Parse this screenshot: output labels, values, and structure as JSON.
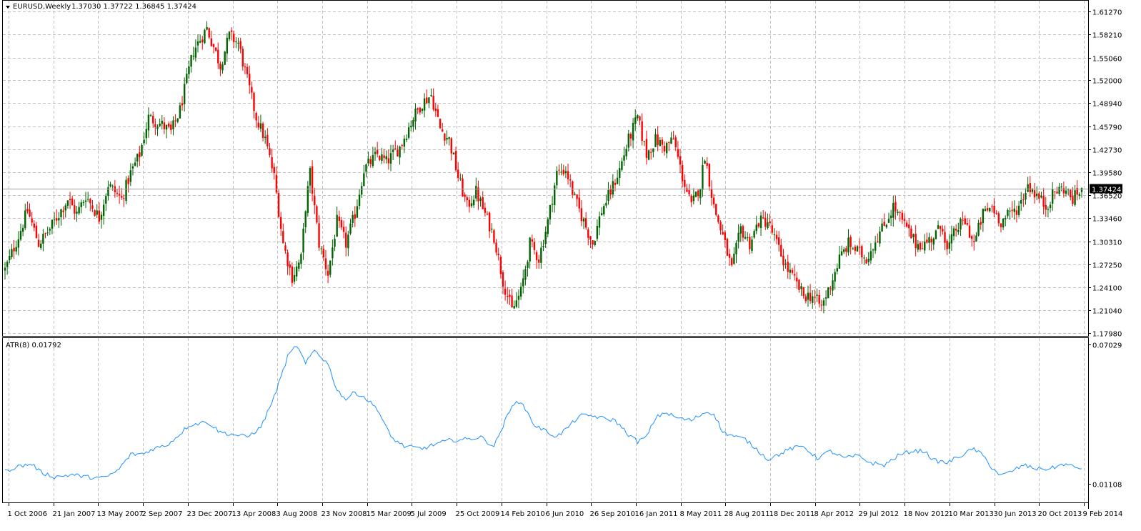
{
  "header": {
    "symbol_line": "EURUSD,Weekly",
    "ohlc": "1.37030 1.37722 1.36845 1.37424"
  },
  "indicator": {
    "label": "ATR(8) 0.01792"
  },
  "colors": {
    "bull": "#006400",
    "bear": "#ff0000",
    "atr_line": "#1e90ff",
    "grid": "#c0c0c0",
    "current_price_box": "#000000"
  },
  "chart_data": [
    {
      "type": "candlestick",
      "symbol": "EURUSD",
      "timeframe": "Weekly",
      "current_price": 1.37424,
      "current_price_label": "1.37424",
      "ylim": [
        1.1798,
        1.6127
      ],
      "y_ticks": [
        "1.61270",
        "1.58210",
        "1.55060",
        "1.52000",
        "1.48940",
        "1.45790",
        "1.42730",
        "1.39580",
        "1.36520",
        "1.33460",
        "1.30310",
        "1.27250",
        "1.24100",
        "1.21040",
        "1.17980"
      ],
      "x_ticks": [
        "1 Oct 2006",
        "21 Jan 2007",
        "13 May 2007",
        "2 Sep 2007",
        "23 Dec 2007",
        "13 Apr 2008",
        "3 Aug 2008",
        "23 Nov 2008",
        "15 Mar 2009",
        "5 Jul 2009",
        "25 Oct 2009",
        "14 Feb 2010",
        "6 Jun 2010",
        "26 Sep 2010",
        "16 Jan 2011",
        "8 May 2011",
        "28 Aug 2011",
        "18 Dec 2011",
        "8 Apr 2012",
        "29 Jul 2012",
        "18 Nov 2012",
        "10 Mar 2013",
        "30 Jun 2013",
        "20 Oct 2013",
        "9 Feb 2014"
      ],
      "close_path": [
        [
          0,
          1.265
        ],
        [
          6,
          1.31
        ],
        [
          10,
          1.345
        ],
        [
          15,
          1.3
        ],
        [
          20,
          1.32
        ],
        [
          28,
          1.36
        ],
        [
          32,
          1.34
        ],
        [
          36,
          1.365
        ],
        [
          42,
          1.335
        ],
        [
          46,
          1.38
        ],
        [
          52,
          1.36
        ],
        [
          56,
          1.395
        ],
        [
          60,
          1.42
        ],
        [
          64,
          1.47
        ],
        [
          70,
          1.46
        ],
        [
          74,
          1.45
        ],
        [
          78,
          1.48
        ],
        [
          84,
          1.56
        ],
        [
          90,
          1.59
        ],
        [
          96,
          1.54
        ],
        [
          100,
          1.58
        ],
        [
          104,
          1.57
        ],
        [
          108,
          1.52
        ],
        [
          112,
          1.47
        ],
        [
          116,
          1.44
        ],
        [
          120,
          1.39
        ],
        [
          124,
          1.3
        ],
        [
          128,
          1.255
        ],
        [
          132,
          1.28
        ],
        [
          134,
          1.35
        ],
        [
          136,
          1.395
        ],
        [
          140,
          1.3
        ],
        [
          144,
          1.26
        ],
        [
          148,
          1.33
        ],
        [
          152,
          1.3
        ],
        [
          156,
          1.34
        ],
        [
          160,
          1.4
        ],
        [
          166,
          1.42
        ],
        [
          170,
          1.41
        ],
        [
          176,
          1.43
        ],
        [
          182,
          1.47
        ],
        [
          186,
          1.49
        ],
        [
          190,
          1.5
        ],
        [
          194,
          1.455
        ],
        [
          198,
          1.44
        ],
        [
          202,
          1.39
        ],
        [
          206,
          1.35
        ],
        [
          210,
          1.37
        ],
        [
          214,
          1.34
        ],
        [
          218,
          1.31
        ],
        [
          222,
          1.25
        ],
        [
          226,
          1.21
        ],
        [
          230,
          1.235
        ],
        [
          234,
          1.3
        ],
        [
          238,
          1.28
        ],
        [
          242,
          1.33
        ],
        [
          246,
          1.395
        ],
        [
          250,
          1.4
        ],
        [
          254,
          1.36
        ],
        [
          258,
          1.33
        ],
        [
          262,
          1.3
        ],
        [
          266,
          1.345
        ],
        [
          270,
          1.37
        ],
        [
          274,
          1.4
        ],
        [
          278,
          1.44
        ],
        [
          282,
          1.47
        ],
        [
          286,
          1.42
        ],
        [
          290,
          1.44
        ],
        [
          294,
          1.43
        ],
        [
          298,
          1.44
        ],
        [
          302,
          1.39
        ],
        [
          306,
          1.35
        ],
        [
          310,
          1.38
        ],
        [
          312,
          1.42
        ],
        [
          316,
          1.35
        ],
        [
          320,
          1.31
        ],
        [
          324,
          1.265
        ],
        [
          328,
          1.32
        ],
        [
          332,
          1.3
        ],
        [
          336,
          1.33
        ],
        [
          340,
          1.33
        ],
        [
          344,
          1.3
        ],
        [
          348,
          1.27
        ],
        [
          352,
          1.25
        ],
        [
          356,
          1.23
        ],
        [
          360,
          1.23
        ],
        [
          364,
          1.215
        ],
        [
          368,
          1.245
        ],
        [
          372,
          1.28
        ],
        [
          376,
          1.3
        ],
        [
          380,
          1.29
        ],
        [
          384,
          1.28
        ],
        [
          388,
          1.305
        ],
        [
          392,
          1.325
        ],
        [
          396,
          1.35
        ],
        [
          398,
          1.34
        ],
        [
          402,
          1.32
        ],
        [
          406,
          1.3
        ],
        [
          410,
          1.3
        ],
        [
          414,
          1.31
        ],
        [
          418,
          1.325
        ],
        [
          420,
          1.29
        ],
        [
          424,
          1.32
        ],
        [
          428,
          1.33
        ],
        [
          432,
          1.3
        ],
        [
          436,
          1.34
        ],
        [
          440,
          1.35
        ],
        [
          444,
          1.33
        ],
        [
          448,
          1.34
        ],
        [
          452,
          1.35
        ],
        [
          456,
          1.38
        ],
        [
          460,
          1.365
        ],
        [
          464,
          1.35
        ],
        [
          468,
          1.37
        ],
        [
          472,
          1.375
        ],
        [
          476,
          1.36
        ],
        [
          480,
          1.374
        ]
      ]
    },
    {
      "type": "line",
      "name": "ATR(8)",
      "current_value": 0.01792,
      "ylim": [
        0.01108,
        0.07029
      ],
      "y_ticks": [
        "0.07029",
        "0.01108"
      ],
      "series": [
        {
          "name": "ATR(8)",
          "values": [
            [
              0,
              0.0165
            ],
            [
              6,
              0.0185
            ],
            [
              12,
              0.0195
            ],
            [
              16,
              0.016
            ],
            [
              22,
              0.014
            ],
            [
              30,
              0.015
            ],
            [
              36,
              0.014
            ],
            [
              44,
              0.0135
            ],
            [
              50,
              0.0165
            ],
            [
              56,
              0.0235
            ],
            [
              62,
              0.024
            ],
            [
              66,
              0.026
            ],
            [
              72,
              0.0275
            ],
            [
              76,
              0.0305
            ],
            [
              82,
              0.036
            ],
            [
              90,
              0.0375
            ],
            [
              96,
              0.033
            ],
            [
              102,
              0.032
            ],
            [
              108,
              0.031
            ],
            [
              114,
              0.035
            ],
            [
              120,
              0.048
            ],
            [
              126,
              0.065
            ],
            [
              130,
              0.07
            ],
            [
              134,
              0.062
            ],
            [
              138,
              0.068
            ],
            [
              144,
              0.062
            ],
            [
              148,
              0.051
            ],
            [
              152,
              0.047
            ],
            [
              156,
              0.05
            ],
            [
              160,
              0.048
            ],
            [
              166,
              0.043
            ],
            [
              172,
              0.031
            ],
            [
              178,
              0.027
            ],
            [
              186,
              0.026
            ],
            [
              192,
              0.028
            ],
            [
              198,
              0.0295
            ],
            [
              206,
              0.03
            ],
            [
              212,
              0.031
            ],
            [
              218,
              0.027
            ],
            [
              224,
              0.04
            ],
            [
              228,
              0.047
            ],
            [
              232,
              0.043
            ],
            [
              236,
              0.036
            ],
            [
              242,
              0.033
            ],
            [
              246,
              0.031
            ],
            [
              252,
              0.036
            ],
            [
              256,
              0.04
            ],
            [
              262,
              0.04
            ],
            [
              266,
              0.039
            ],
            [
              272,
              0.038
            ],
            [
              278,
              0.032
            ],
            [
              282,
              0.029
            ],
            [
              286,
              0.031
            ],
            [
              290,
              0.039
            ],
            [
              294,
              0.0415
            ],
            [
              300,
              0.039
            ],
            [
              306,
              0.038
            ],
            [
              312,
              0.0415
            ],
            [
              316,
              0.041
            ],
            [
              320,
              0.033
            ],
            [
              326,
              0.031
            ],
            [
              330,
              0.03
            ],
            [
              336,
              0.025
            ],
            [
              340,
              0.0215
            ],
            [
              346,
              0.024
            ],
            [
              350,
              0.026
            ],
            [
              356,
              0.027
            ],
            [
              362,
              0.022
            ],
            [
              368,
              0.025
            ],
            [
              374,
              0.022
            ],
            [
              380,
              0.023
            ],
            [
              386,
              0.02
            ],
            [
              392,
              0.019
            ],
            [
              398,
              0.023
            ],
            [
              404,
              0.025
            ],
            [
              410,
              0.025
            ],
            [
              414,
              0.021
            ],
            [
              420,
              0.02
            ],
            [
              426,
              0.023
            ],
            [
              432,
              0.026
            ],
            [
              436,
              0.023
            ],
            [
              440,
              0.018
            ],
            [
              444,
              0.0145
            ],
            [
              448,
              0.016
            ],
            [
              454,
              0.019
            ],
            [
              460,
              0.0175
            ],
            [
              466,
              0.0175
            ],
            [
              472,
              0.0195
            ],
            [
              478,
              0.0179
            ]
          ]
        }
      ]
    }
  ]
}
